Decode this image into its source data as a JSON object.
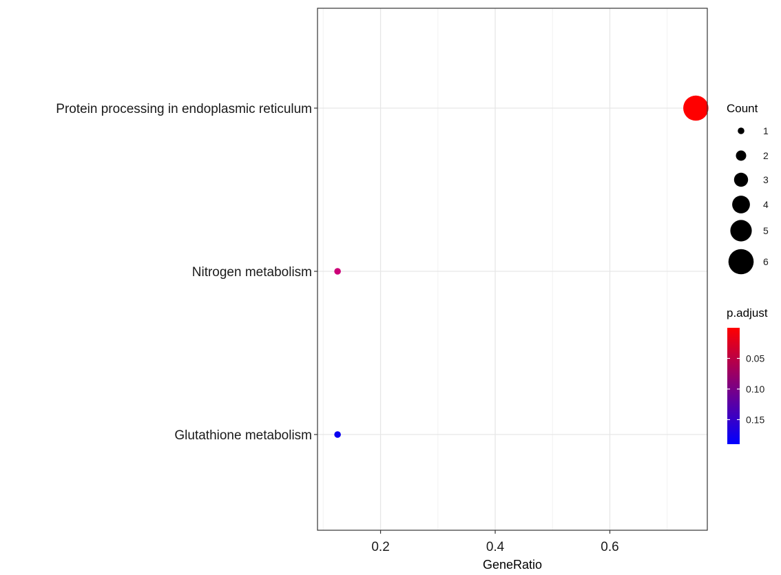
{
  "chart_data": {
    "type": "scatter",
    "title": "",
    "xlabel": "GeneRatio",
    "ylabel": "",
    "xlim": [
      0.09,
      0.77
    ],
    "x_ticks": [
      0.2,
      0.4,
      0.6
    ],
    "x_tick_labels": [
      "0.2",
      "0.4",
      "0.6"
    ],
    "categories": [
      "Protein processing in endoplasmic reticulum",
      "Nitrogen metabolism",
      "Glutathione metabolism"
    ],
    "points": [
      {
        "category": "Protein processing in endoplasmic reticulum",
        "x": 0.75,
        "count": 6,
        "p_adjust": 0.001,
        "color": "#ff0000"
      },
      {
        "category": "Nitrogen metabolism",
        "x": 0.125,
        "count": 1,
        "p_adjust": 0.09,
        "color": "#cc0077"
      },
      {
        "category": "Glutathione metabolism",
        "x": 0.125,
        "count": 1,
        "p_adjust": 0.185,
        "color": "#0a00f0"
      }
    ],
    "grid": true,
    "legend_position": "right",
    "size_legend": {
      "title": "Count",
      "items": [
        {
          "label": "1",
          "value": 1
        },
        {
          "label": "2",
          "value": 2
        },
        {
          "label": "3",
          "value": 3
        },
        {
          "label": "4",
          "value": 4
        },
        {
          "label": "5",
          "value": 5
        },
        {
          "label": "6",
          "value": 6
        }
      ]
    },
    "color_legend": {
      "title": "p.adjust",
      "range": [
        0.0,
        0.19
      ],
      "low_color": "#ff0000",
      "high_color": "#0000ff",
      "ticks": [
        {
          "label": "0.05",
          "value": 0.05
        },
        {
          "label": "0.10",
          "value": 0.1
        },
        {
          "label": "0.15",
          "value": 0.15
        }
      ]
    }
  }
}
